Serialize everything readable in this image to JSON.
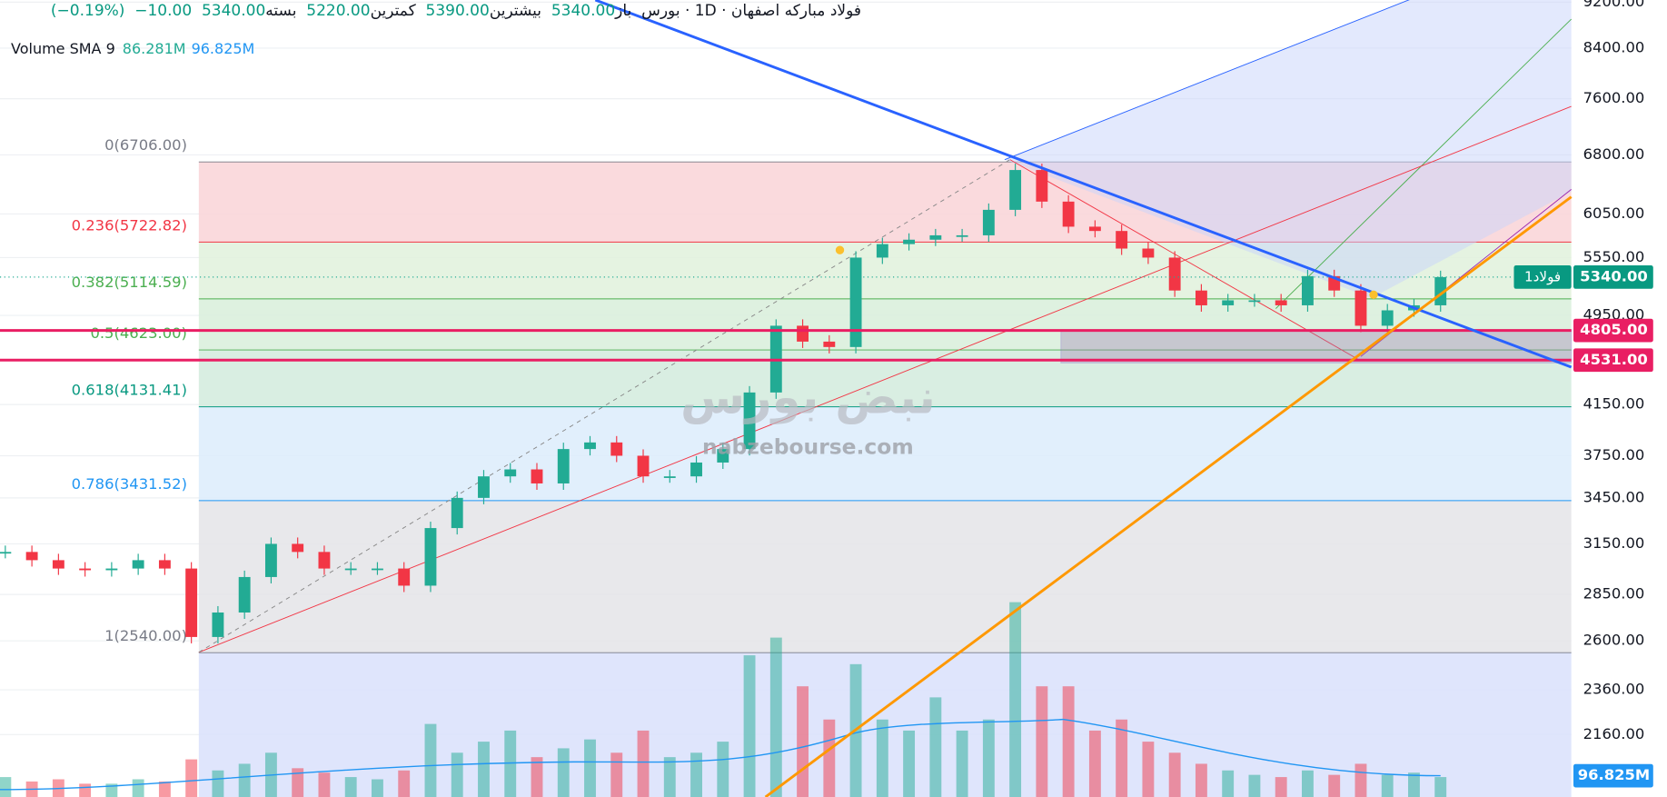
{
  "header": {
    "symbol": "فولاد مبارکه اصفهان",
    "interval": "1D",
    "exchange": "بورس",
    "open_label": "باز",
    "open": "5340.00",
    "high_label": "بیشترین",
    "high": "5390.00",
    "low_label": "کمترین",
    "low": "5220.00",
    "close_label": "بسته",
    "close": "5340.00",
    "change": "−10.00",
    "change_pct": "(−0.19%)"
  },
  "volume_legend": {
    "name": "Volume SMA 9",
    "volume": "86.281M",
    "sma": "96.825M"
  },
  "chart_data": {
    "type": "candlestick",
    "log_scale": true,
    "ylim": [
      1909,
      9239
    ],
    "yticks": [
      {
        "value": 9200,
        "label": "9200.00"
      },
      {
        "value": 8400,
        "label": "8400.00"
      },
      {
        "value": 7600,
        "label": "7600.00"
      },
      {
        "value": 6800,
        "label": "6800.00"
      },
      {
        "value": 6050,
        "label": "6050.00"
      },
      {
        "value": 5550,
        "label": "5550.00"
      },
      {
        "value": 4950,
        "label": "4950.00"
      },
      {
        "value": 4150,
        "label": "4150.00"
      },
      {
        "value": 3750,
        "label": "3750.00"
      },
      {
        "value": 3450,
        "label": "3450.00"
      },
      {
        "value": 3150,
        "label": "3150.00"
      },
      {
        "value": 2850,
        "label": "2850.00"
      },
      {
        "value": 2600,
        "label": "2600.00"
      },
      {
        "value": 2360,
        "label": "2360.00"
      },
      {
        "value": 2160,
        "label": "2160.00"
      }
    ],
    "closes": [
      3100,
      3050,
      3000,
      2990,
      3000,
      3050,
      3000,
      2620,
      2750,
      2950,
      3150,
      3100,
      3000,
      3000,
      3000,
      2900,
      3250,
      3450,
      3600,
      3650,
      3550,
      3800,
      3850,
      3750,
      3600,
      3600,
      3700,
      3800,
      4250,
      4850,
      4700,
      4650,
      5550,
      5700,
      5750,
      5800,
      5800,
      6100,
      6600,
      6200,
      5900,
      5850,
      5650,
      5550,
      5200,
      5050,
      5100,
      5100,
      5050,
      5350,
      5200,
      4850,
      5000,
      5050,
      5340
    ],
    "volumes": [
      90,
      70,
      80,
      60,
      60,
      80,
      70,
      170,
      120,
      150,
      200,
      130,
      110,
      90,
      80,
      120,
      330,
      200,
      250,
      300,
      180,
      220,
      260,
      200,
      300,
      180,
      200,
      250,
      640,
      720,
      500,
      350,
      600,
      350,
      300,
      450,
      300,
      350,
      880,
      500,
      500,
      300,
      350,
      250,
      200,
      150,
      120,
      100,
      90,
      120,
      100,
      150,
      100,
      110,
      90
    ],
    "volume_ylim": [
      0,
      3600
    ],
    "up_color": "#22ab94",
    "down_color": "#f23645",
    "fib": [
      {
        "label": "0(6706.00)",
        "price": 6706,
        "color": "#787b86",
        "fill": "#f9d3d7"
      },
      {
        "label": "0.236(5722.82)",
        "price": 5722.82,
        "color": "#f23645",
        "fill": "#e1f1dc"
      },
      {
        "label": "0.382(5114.59)",
        "price": 5114.59,
        "color": "#4caf50",
        "fill": "#d8eedb"
      },
      {
        "label": "0.5(4623.00)",
        "price": 4623,
        "color": "#4caf50",
        "fill": "#d2ebdd"
      },
      {
        "label": "0.618(4131.41)",
        "price": 4131.41,
        "color": "#089981",
        "fill": "#dcecfb"
      },
      {
        "label": "0.786(3431.52)",
        "price": 3431.52,
        "color": "#2196f3",
        "fill": "#e4e4e7"
      },
      {
        "label": "1(2540.00)",
        "price": 2540,
        "color": "#787b86",
        "fill": "#d9e0fb"
      }
    ],
    "price_tag": {
      "name": "فولاد1",
      "value": 5340,
      "label": "5340.00"
    },
    "levels": [
      {
        "value": 4805,
        "label": "4805.00"
      },
      {
        "value": 4531,
        "label": "4531.00"
      }
    ],
    "sma_tag": "96.825M"
  },
  "watermark": {
    "logo": "نبض بورس",
    "site": "nabzebourse.com"
  }
}
